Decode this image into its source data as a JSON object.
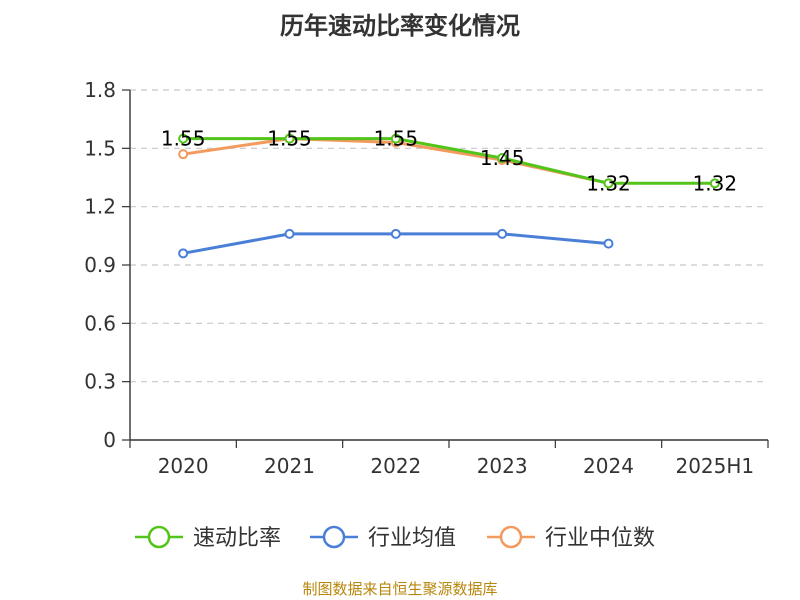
{
  "chart_data": {
    "type": "line",
    "title": "历年速动比率变化情况",
    "categories": [
      "2020",
      "2021",
      "2022",
      "2023",
      "2024",
      "2025H1"
    ],
    "ylim": [
      0,
      1.8
    ],
    "yticks": [
      "0",
      "0.3",
      "0.6",
      "0.9",
      "1.2",
      "1.5",
      "1.8"
    ],
    "grid": true,
    "legend_position": "bottom",
    "series": [
      {
        "name": "速动比率",
        "color": "#52c41a",
        "values": [
          1.55,
          1.55,
          1.55,
          1.45,
          1.32,
          1.32
        ],
        "labels": [
          "1.55",
          "1.55",
          "1.55",
          "1.45",
          "1.32",
          "1.32"
        ]
      },
      {
        "name": "行业均值",
        "color": "#4a7fd8",
        "values": [
          0.96,
          1.06,
          1.06,
          1.06,
          1.01,
          null
        ]
      },
      {
        "name": "行业中位数",
        "color": "#f39a5e",
        "values": [
          1.47,
          1.55,
          1.53,
          1.44,
          1.32,
          null
        ]
      }
    ],
    "source": "制图数据来自恒生聚源数据库"
  }
}
